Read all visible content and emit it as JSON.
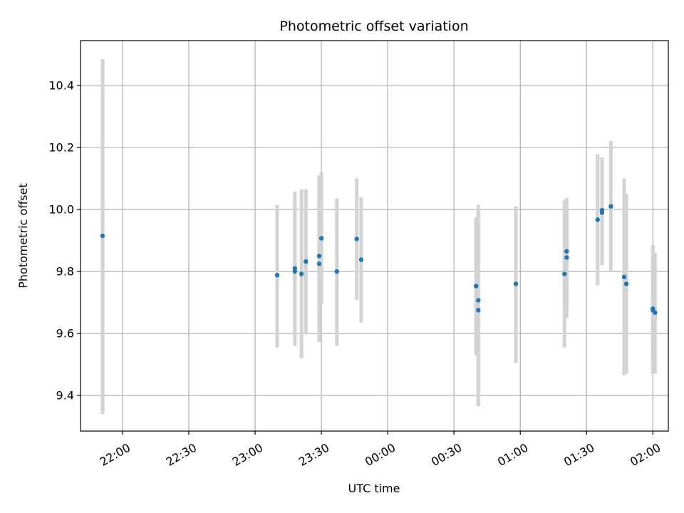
{
  "chart_data": {
    "type": "scatter",
    "title": "Photometric offset variation",
    "xlabel": "UTC time",
    "ylabel": "Photometric offset",
    "grid": true,
    "x_axis": "time (HH:MM, spanning midnight)",
    "xlim": [
      "21:41",
      "02:07"
    ],
    "ylim": [
      9.285,
      10.545
    ],
    "y_ticks": [
      9.4,
      9.6,
      9.8,
      10.0,
      10.2,
      10.4
    ],
    "y_tick_labels": [
      "9.4",
      "9.6",
      "9.8",
      "10.0",
      "10.2",
      "10.4"
    ],
    "x_ticks": [
      "22:00",
      "22:30",
      "23:00",
      "23:30",
      "00:00",
      "00:30",
      "01:00",
      "01:30",
      "02:00"
    ],
    "colors": {
      "point": "#1f77b4",
      "errorbar": "#d3d3d3",
      "grid": "#b0b0b0"
    },
    "points": [
      {
        "x": "21:51",
        "y": 9.915,
        "lo": 9.34,
        "hi": 10.485
      },
      {
        "x": "23:10",
        "y": 9.788,
        "lo": 9.555,
        "hi": 10.015
      },
      {
        "x": "23:18",
        "y": 9.81,
        "lo": 9.56,
        "hi": 10.058
      },
      {
        "x": "23:18",
        "y": 9.8,
        "lo": 9.6,
        "hi": 10.04
      },
      {
        "x": "23:21",
        "y": 9.792,
        "lo": 9.52,
        "hi": 10.065
      },
      {
        "x": "23:23",
        "y": 9.832,
        "lo": 9.6,
        "hi": 10.065
      },
      {
        "x": "23:29",
        "y": 9.825,
        "lo": 9.572,
        "hi": 10.088
      },
      {
        "x": "23:29",
        "y": 9.85,
        "lo": 9.58,
        "hi": 10.11
      },
      {
        "x": "23:30",
        "y": 9.907,
        "lo": 9.695,
        "hi": 10.12
      },
      {
        "x": "23:37",
        "y": 9.8,
        "lo": 9.56,
        "hi": 10.035
      },
      {
        "x": "23:46",
        "y": 9.905,
        "lo": 9.708,
        "hi": 10.1
      },
      {
        "x": "23:48",
        "y": 9.838,
        "lo": 9.635,
        "hi": 10.04
      },
      {
        "x": "00:40",
        "y": 9.753,
        "lo": 9.53,
        "hi": 9.975
      },
      {
        "x": "00:41",
        "y": 9.707,
        "lo": 9.385,
        "hi": 10.015
      },
      {
        "x": "00:41",
        "y": 9.675,
        "lo": 9.365,
        "hi": 9.985
      },
      {
        "x": "00:58",
        "y": 9.76,
        "lo": 9.505,
        "hi": 10.01
      },
      {
        "x": "01:20",
        "y": 9.792,
        "lo": 9.555,
        "hi": 10.03
      },
      {
        "x": "01:21",
        "y": 9.865,
        "lo": 9.68,
        "hi": 10.035
      },
      {
        "x": "01:21",
        "y": 9.845,
        "lo": 9.65,
        "hi": 10.038
      },
      {
        "x": "01:35",
        "y": 9.967,
        "lo": 9.755,
        "hi": 10.178
      },
      {
        "x": "01:37",
        "y": 9.99,
        "lo": 9.82,
        "hi": 10.165
      },
      {
        "x": "01:37",
        "y": 9.998,
        "lo": 9.835,
        "hi": 10.168
      },
      {
        "x": "01:41",
        "y": 10.01,
        "lo": 9.8,
        "hi": 10.222
      },
      {
        "x": "01:47",
        "y": 9.782,
        "lo": 9.465,
        "hi": 10.1
      },
      {
        "x": "01:48",
        "y": 9.76,
        "lo": 9.47,
        "hi": 10.05
      },
      {
        "x": "02:00",
        "y": 9.68,
        "lo": 9.515,
        "hi": 9.845
      },
      {
        "x": "02:00",
        "y": 9.675,
        "lo": 9.47,
        "hi": 9.885
      },
      {
        "x": "02:01",
        "y": 9.667,
        "lo": 9.47,
        "hi": 9.86
      }
    ]
  }
}
